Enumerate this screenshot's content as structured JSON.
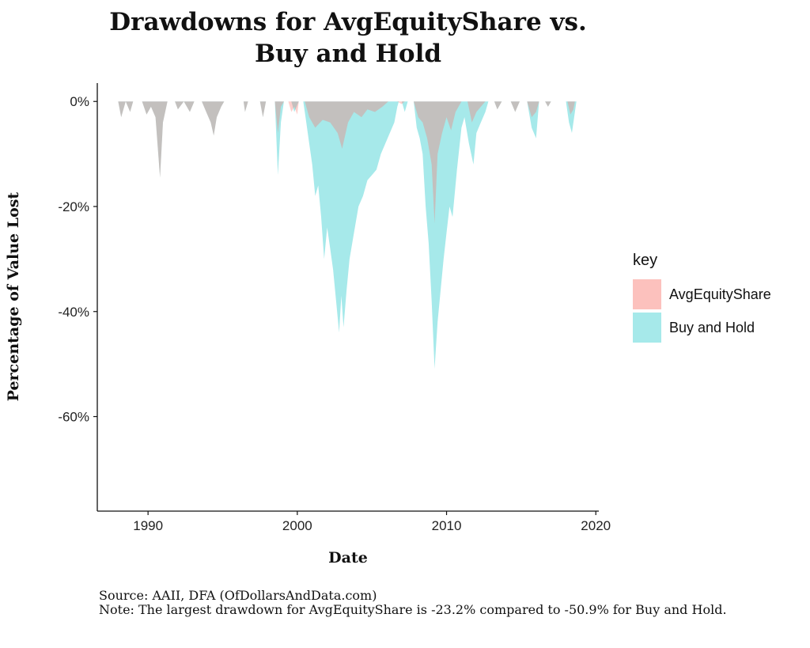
{
  "chart_data": {
    "type": "area",
    "title": [
      "Drawdowns for AvgEquityShare vs.",
      "Buy and Hold"
    ],
    "xlabel": "Date",
    "ylabel": "Percentage of Value Lost",
    "xlim": [
      1986.6,
      2020.2
    ],
    "ylim": [
      -78,
      3.5
    ],
    "x_ticks": [
      1990,
      2000,
      2010,
      2020
    ],
    "x_tick_labels": [
      "1990",
      "2000",
      "2010",
      "2020"
    ],
    "y_ticks": [
      0,
      -20,
      -40,
      -60
    ],
    "y_tick_labels": [
      "0%",
      "-20%",
      "-40%",
      "-60%"
    ],
    "grid": false,
    "legend": {
      "title": "key",
      "position": "right"
    },
    "series": [
      {
        "name": "AvgEquityShare",
        "color": "#F8766D",
        "points": [
          [
            1988.0,
            0
          ],
          [
            1988.2,
            -3
          ],
          [
            1988.5,
            0
          ],
          [
            1988.8,
            -2
          ],
          [
            1989.0,
            0
          ],
          [
            1989.6,
            0
          ],
          [
            1989.9,
            -2.5
          ],
          [
            1990.2,
            -1
          ],
          [
            1990.5,
            -3
          ],
          [
            1990.8,
            -14.5
          ],
          [
            1991.0,
            -4
          ],
          [
            1991.3,
            0
          ],
          [
            1991.8,
            0
          ],
          [
            1992.0,
            -1.5
          ],
          [
            1992.4,
            0
          ],
          [
            1992.8,
            -2
          ],
          [
            1993.1,
            0
          ],
          [
            1993.6,
            0
          ],
          [
            1993.9,
            -2
          ],
          [
            1994.2,
            -4
          ],
          [
            1994.4,
            -6.5
          ],
          [
            1994.6,
            -3
          ],
          [
            1994.9,
            -1
          ],
          [
            1995.1,
            0
          ],
          [
            1996.4,
            0
          ],
          [
            1996.5,
            -2
          ],
          [
            1996.7,
            0
          ],
          [
            1997.5,
            0
          ],
          [
            1997.7,
            -3
          ],
          [
            1997.9,
            0
          ],
          [
            1998.5,
            0
          ],
          [
            1998.7,
            -6
          ],
          [
            1998.9,
            -1
          ],
          [
            1999.1,
            0
          ],
          [
            1999.4,
            0
          ],
          [
            1999.6,
            -2
          ],
          [
            1999.8,
            -1
          ],
          [
            2000.0,
            -2.5
          ],
          [
            2000.1,
            0
          ],
          [
            2000.5,
            0
          ],
          [
            2000.8,
            -3
          ],
          [
            2001.2,
            -5
          ],
          [
            2001.7,
            -3.5
          ],
          [
            2002.2,
            -4
          ],
          [
            2002.7,
            -6
          ],
          [
            2003.0,
            -9
          ],
          [
            2003.4,
            -4
          ],
          [
            2003.8,
            -2
          ],
          [
            2004.3,
            -3
          ],
          [
            2004.7,
            -1.5
          ],
          [
            2005.2,
            -2
          ],
          [
            2005.7,
            -1
          ],
          [
            2006.1,
            0
          ],
          [
            2006.7,
            0
          ],
          [
            2007.0,
            -0.5
          ],
          [
            2007.2,
            0
          ],
          [
            2007.8,
            0
          ],
          [
            2008.1,
            -3
          ],
          [
            2008.4,
            -4
          ],
          [
            2008.7,
            -7
          ],
          [
            2009.0,
            -12
          ],
          [
            2009.2,
            -23.2
          ],
          [
            2009.4,
            -10
          ],
          [
            2009.7,
            -6
          ],
          [
            2010.0,
            -3
          ],
          [
            2010.3,
            -5.5
          ],
          [
            2010.6,
            -2
          ],
          [
            2011.0,
            0
          ],
          [
            2011.4,
            0
          ],
          [
            2011.7,
            -4
          ],
          [
            2012.0,
            -2
          ],
          [
            2012.3,
            -1
          ],
          [
            2012.6,
            0
          ],
          [
            2013.2,
            0
          ],
          [
            2013.4,
            -1.5
          ],
          [
            2013.7,
            0
          ],
          [
            2014.3,
            0
          ],
          [
            2014.6,
            -2
          ],
          [
            2014.9,
            0
          ],
          [
            2015.4,
            0
          ],
          [
            2015.7,
            -3
          ],
          [
            2016.0,
            -2
          ],
          [
            2016.2,
            0
          ],
          [
            2016.6,
            0
          ],
          [
            2016.8,
            -1
          ],
          [
            2017.0,
            0
          ],
          [
            2018.1,
            0
          ],
          [
            2018.3,
            -2.5
          ],
          [
            2018.5,
            -1.5
          ],
          [
            2018.6,
            0
          ]
        ]
      },
      {
        "name": "Buy and Hold",
        "color": "#00BFC4",
        "points": [
          [
            1988.0,
            0
          ],
          [
            1988.2,
            -3
          ],
          [
            1988.5,
            0
          ],
          [
            1988.8,
            -2
          ],
          [
            1989.0,
            0
          ],
          [
            1989.6,
            0
          ],
          [
            1989.9,
            -2.5
          ],
          [
            1990.2,
            -1
          ],
          [
            1990.5,
            -3
          ],
          [
            1990.8,
            -14.5
          ],
          [
            1991.0,
            -4
          ],
          [
            1991.3,
            0
          ],
          [
            1991.8,
            0
          ],
          [
            1992.0,
            -1.5
          ],
          [
            1992.4,
            0
          ],
          [
            1992.8,
            -2
          ],
          [
            1993.1,
            0
          ],
          [
            1993.6,
            0
          ],
          [
            1993.9,
            -2
          ],
          [
            1994.2,
            -4
          ],
          [
            1994.4,
            -6.5
          ],
          [
            1994.6,
            -3
          ],
          [
            1994.9,
            -1
          ],
          [
            1995.1,
            0
          ],
          [
            1996.4,
            0
          ],
          [
            1996.5,
            -2
          ],
          [
            1996.7,
            0
          ],
          [
            1997.5,
            0
          ],
          [
            1997.7,
            -3
          ],
          [
            1997.9,
            0
          ],
          [
            1998.5,
            0
          ],
          [
            1998.7,
            -14
          ],
          [
            1998.9,
            -4
          ],
          [
            1999.1,
            0
          ],
          [
            1999.6,
            0
          ],
          [
            1999.8,
            -2
          ],
          [
            2000.1,
            0
          ],
          [
            2000.4,
            0
          ],
          [
            2000.6,
            -4
          ],
          [
            2000.8,
            -8
          ],
          [
            2001.0,
            -12
          ],
          [
            2001.2,
            -18
          ],
          [
            2001.4,
            -16
          ],
          [
            2001.6,
            -22
          ],
          [
            2001.8,
            -30
          ],
          [
            2002.0,
            -24
          ],
          [
            2002.2,
            -28
          ],
          [
            2002.4,
            -32
          ],
          [
            2002.6,
            -38
          ],
          [
            2002.8,
            -44
          ],
          [
            2002.95,
            -37
          ],
          [
            2003.1,
            -43
          ],
          [
            2003.3,
            -36
          ],
          [
            2003.5,
            -30
          ],
          [
            2003.8,
            -25
          ],
          [
            2004.1,
            -20
          ],
          [
            2004.4,
            -18
          ],
          [
            2004.7,
            -15
          ],
          [
            2005.0,
            -14
          ],
          [
            2005.3,
            -13
          ],
          [
            2005.6,
            -10
          ],
          [
            2005.9,
            -8
          ],
          [
            2006.2,
            -6
          ],
          [
            2006.5,
            -4
          ],
          [
            2006.7,
            -1
          ],
          [
            2006.8,
            0
          ],
          [
            2007.0,
            0
          ],
          [
            2007.2,
            -2
          ],
          [
            2007.4,
            0
          ],
          [
            2007.8,
            0
          ],
          [
            2008.0,
            -5
          ],
          [
            2008.2,
            -7
          ],
          [
            2008.4,
            -10
          ],
          [
            2008.6,
            -20
          ],
          [
            2008.8,
            -27
          ],
          [
            2009.0,
            -38
          ],
          [
            2009.2,
            -50.9
          ],
          [
            2009.4,
            -42
          ],
          [
            2009.6,
            -36
          ],
          [
            2009.8,
            -30
          ],
          [
            2010.0,
            -25
          ],
          [
            2010.2,
            -20
          ],
          [
            2010.4,
            -22
          ],
          [
            2010.7,
            -13
          ],
          [
            2011.0,
            -5
          ],
          [
            2011.2,
            -3
          ],
          [
            2011.5,
            -8
          ],
          [
            2011.8,
            -12
          ],
          [
            2012.0,
            -6
          ],
          [
            2012.3,
            -4
          ],
          [
            2012.6,
            -2
          ],
          [
            2012.8,
            0
          ],
          [
            2013.2,
            0
          ],
          [
            2013.4,
            -1.5
          ],
          [
            2013.7,
            0
          ],
          [
            2014.3,
            0
          ],
          [
            2014.6,
            -2
          ],
          [
            2014.9,
            0
          ],
          [
            2015.4,
            0
          ],
          [
            2015.7,
            -5
          ],
          [
            2016.0,
            -7
          ],
          [
            2016.2,
            0
          ],
          [
            2016.6,
            0
          ],
          [
            2016.8,
            -1
          ],
          [
            2017.0,
            0
          ],
          [
            2018.0,
            0
          ],
          [
            2018.2,
            -4
          ],
          [
            2018.4,
            -6
          ],
          [
            2018.6,
            -2
          ],
          [
            2018.7,
            0
          ]
        ]
      }
    ]
  },
  "notes": {
    "source": "Source: AAII, DFA (OfDollarsAndData.com)",
    "note": "Note: The largest drawdown for AvgEquityShare is -23.2% compared to -50.9% for Buy and Hold."
  }
}
